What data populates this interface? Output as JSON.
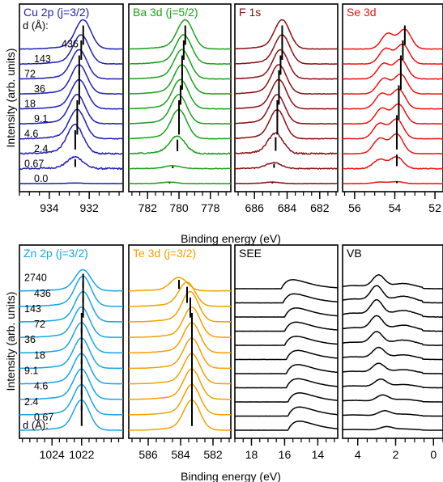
{
  "figure": {
    "ylabel": "Intensity (arb. units)",
    "xlabel": "Binding energy (eV)"
  },
  "chart_data": [
    {
      "type": "line",
      "title": "Cu 2p (j=3/2)",
      "color": "#1f1fb4",
      "xlim": [
        935.5,
        930.3
      ],
      "xticks": [
        934,
        932
      ],
      "thickness_header": "d (Å):",
      "thickness_labels": [
        "436",
        "143",
        "72",
        "36",
        "18",
        "9.1",
        "4.6",
        "2.4",
        "0.67",
        "0.0"
      ],
      "shape": "peak",
      "peak_x": [
        932.7,
        932.7,
        932.7,
        932.6,
        932.6,
        932.5,
        932.5,
        932.5,
        932.4,
        932.3
      ],
      "amp": [
        0.02,
        0.4,
        1.0,
        1.0,
        1.0,
        1.0,
        1.0,
        1.0,
        1.0,
        1.0
      ],
      "width": 0.55,
      "noise": [
        1.0,
        0.6,
        0.2,
        0.1,
        0.05,
        0.05,
        0.05,
        0.05,
        0.05,
        0.05
      ]
    },
    {
      "type": "line",
      "title": "Ba 3d (j=5/2)",
      "color": "#1aa11a",
      "xlim": [
        783.2,
        776.7
      ],
      "xticks": [
        782,
        780,
        778
      ],
      "shape": "peak",
      "peak_x": [
        780.6,
        780.4,
        780.1,
        780.0,
        780.0,
        779.9,
        779.8,
        779.8,
        779.7,
        779.6
      ],
      "amp": [
        0.05,
        0.1,
        0.6,
        1.0,
        1.0,
        1.0,
        1.0,
        1.0,
        1.0,
        1.0
      ],
      "width": 0.7,
      "noise": [
        1.0,
        0.8,
        0.3,
        0.05,
        0.05,
        0.05,
        0.05,
        0.05,
        0.05,
        0.05
      ]
    },
    {
      "type": "line",
      "title": "F 1s",
      "color": "#8b0f12",
      "xlim": [
        687.2,
        680.9
      ],
      "xticks": [
        686,
        684,
        682
      ],
      "shape": "peak",
      "peak_x": [
        684.9,
        684.8,
        684.7,
        684.6,
        684.6,
        684.5,
        684.5,
        684.4,
        684.3,
        684.3
      ],
      "amp": [
        0.05,
        0.2,
        0.7,
        1.0,
        1.0,
        1.0,
        1.0,
        1.0,
        1.0,
        1.0
      ],
      "width": 0.65,
      "noise": [
        1.0,
        0.7,
        0.3,
        0.08,
        0.05,
        0.05,
        0.05,
        0.05,
        0.05,
        0.05
      ]
    },
    {
      "type": "line",
      "title": "Se 3d",
      "color": "#ee1111",
      "xlim": [
        56.6,
        51.6
      ],
      "xticks": [
        56,
        54,
        52
      ],
      "shape": "doublet",
      "peak_x": [
        53.9,
        53.9,
        53.9,
        53.9,
        53.8,
        53.8,
        53.7,
        53.7,
        53.6,
        53.5
      ],
      "amp": [
        0.1,
        0.6,
        1.0,
        1.0,
        1.0,
        1.0,
        1.0,
        1.0,
        1.0,
        1.0
      ],
      "width": 0.45,
      "noise": [
        0.4,
        0.2,
        0.05,
        0.05,
        0.05,
        0.05,
        0.05,
        0.05,
        0.05,
        0.05
      ]
    },
    {
      "type": "line",
      "title": "Zn 2p (j=3/2)",
      "color": "#1aa3e6",
      "xlim": [
        1026.2,
        1019.2
      ],
      "xticks": [
        1024,
        1022
      ],
      "thickness_header": "d (Å):",
      "thickness_labels": [
        "2740",
        "436",
        "143",
        "72",
        "36",
        "18",
        "9.1",
        "4.6",
        "2.4",
        "0.67"
      ],
      "shape": "peak",
      "peak_x": [
        1022.0,
        1022.0,
        1022.0,
        1022.0,
        1022.0,
        1022.0,
        1022.0,
        1021.9,
        1021.9,
        1021.9
      ],
      "amp": [
        1.0,
        1.0,
        1.0,
        1.0,
        1.0,
        1.0,
        1.0,
        1.0,
        1.0,
        0.7
      ],
      "width": 0.75,
      "noise": [
        0.02,
        0.02,
        0.02,
        0.02,
        0.02,
        0.02,
        0.02,
        0.02,
        0.02,
        0.05
      ]
    },
    {
      "type": "line",
      "title": "Te 3d (j=3/2)",
      "color": "#f5a000",
      "xlim": [
        587.2,
        580.9
      ],
      "xticks": [
        586,
        584,
        582
      ],
      "shape": "peak",
      "peak_x": [
        583.3,
        583.3,
        583.3,
        583.3,
        583.3,
        583.3,
        583.3,
        583.4,
        583.6,
        584.1
      ],
      "amp": [
        1.0,
        1.0,
        1.0,
        1.0,
        1.0,
        1.0,
        1.0,
        1.0,
        0.8,
        0.45
      ],
      "width": 0.7,
      "noise": [
        0.02,
        0.02,
        0.02,
        0.02,
        0.02,
        0.02,
        0.02,
        0.02,
        0.05,
        0.15
      ]
    },
    {
      "type": "line",
      "title": "SEE",
      "color": "#000000",
      "xlim": [
        19.0,
        12.8
      ],
      "xticks": [
        18,
        16,
        14
      ],
      "shape": "edge",
      "peak_x": [
        15.8,
        15.8,
        15.8,
        15.9,
        15.9,
        15.9,
        16.0,
        16.0,
        16.0,
        16.1,
        16.2
      ],
      "amp": [
        1.0,
        1.0,
        1.0,
        1.0,
        1.0,
        1.0,
        1.0,
        1.0,
        1.0,
        1.0,
        1.0
      ],
      "width": 0.9,
      "noise": [
        0.02,
        0.02,
        0.02,
        0.02,
        0.02,
        0.02,
        0.02,
        0.02,
        0.02,
        0.02,
        0.02
      ]
    },
    {
      "type": "line",
      "title": "VB",
      "color": "#000000",
      "xlim": [
        4.8,
        -0.5
      ],
      "xticks": [
        4,
        2,
        0
      ],
      "shape": "valence",
      "peak_x": [
        2.5,
        2.6,
        2.7,
        2.8,
        2.9,
        2.9,
        3.0,
        3.0,
        3.0,
        3.0,
        2.9
      ],
      "amp": [
        0.2,
        0.3,
        0.4,
        0.5,
        0.6,
        0.7,
        0.8,
        0.9,
        1.0,
        1.0,
        0.8
      ],
      "width": 0.45,
      "noise": [
        0.05,
        0.05,
        0.05,
        0.05,
        0.05,
        0.05,
        0.05,
        0.05,
        0.05,
        0.05,
        0.05
      ]
    }
  ]
}
